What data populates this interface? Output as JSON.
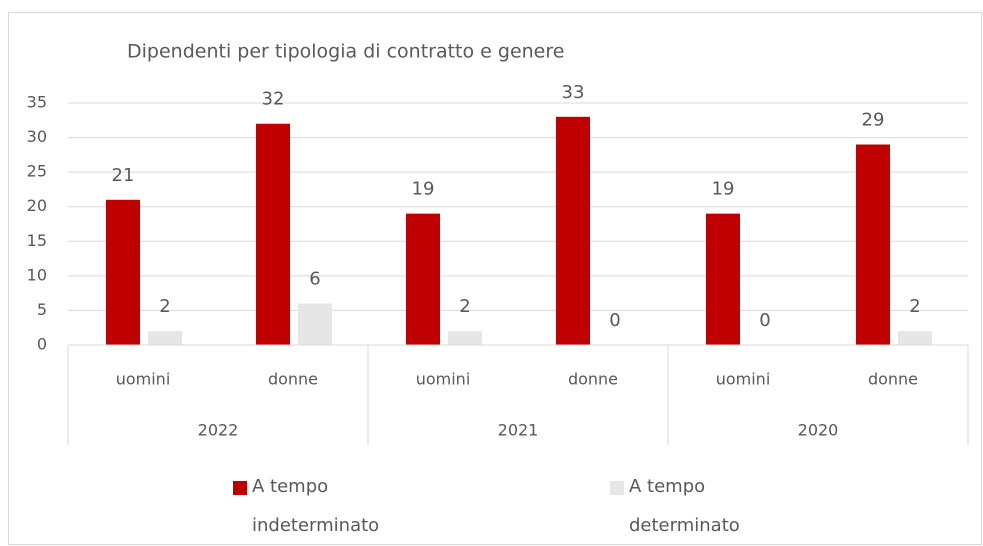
{
  "chart_data": {
    "type": "bar",
    "title": "Dipendenti per tipologia di contratto e genere",
    "categories": [
      "uomini",
      "donne",
      "uomini",
      "donne",
      "uomini",
      "donne"
    ],
    "groups": [
      "2022",
      "2021",
      "2020"
    ],
    "series": [
      {
        "name": "A tempo indeterminato",
        "color": "#c00000",
        "values": [
          21,
          32,
          19,
          33,
          19,
          29
        ]
      },
      {
        "name": "A tempo determinato",
        "color": "#e6e6e6",
        "values": [
          2,
          6,
          2,
          0,
          0,
          2
        ]
      }
    ],
    "ylim": [
      0,
      35
    ],
    "yticks": [
      0,
      5,
      10,
      15,
      20,
      25,
      30,
      35
    ],
    "grid": true,
    "legend": "bottom"
  }
}
